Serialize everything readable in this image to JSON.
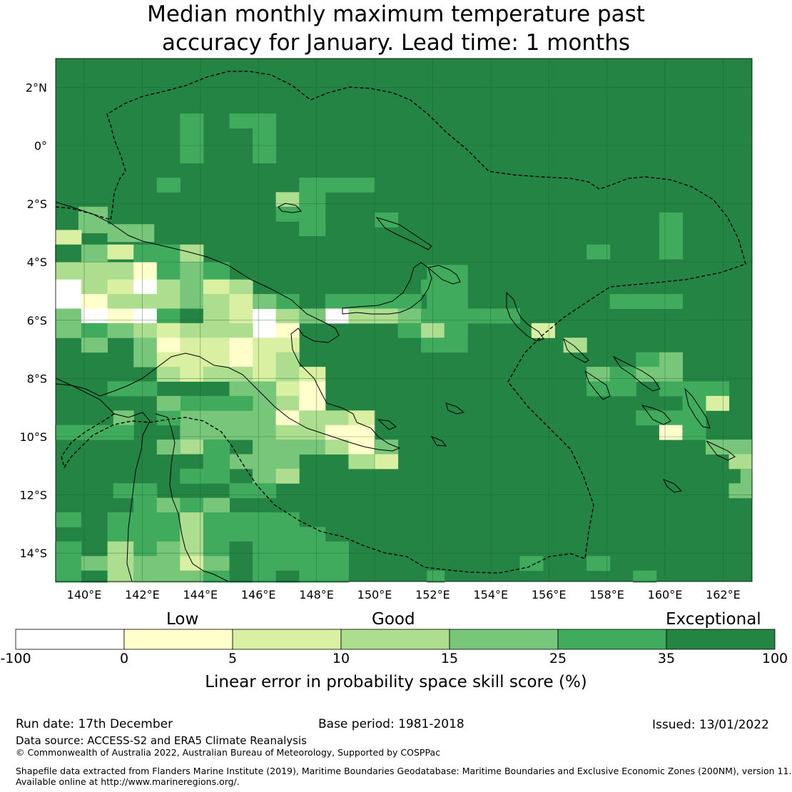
{
  "title": {
    "line1": "Median monthly maximum temperature past",
    "line2": "accuracy for January. Lead time: 1 months"
  },
  "map": {
    "lat_labels": [
      "2°N",
      "0°",
      "2°S",
      "4°S",
      "6°S",
      "8°S",
      "10°S",
      "12°S",
      "14°S"
    ],
    "lon_labels": [
      "140°E",
      "142°E",
      "144°E",
      "146°E",
      "148°E",
      "150°E",
      "152°E",
      "154°E",
      "156°E",
      "158°E",
      "160°E",
      "162°E"
    ],
    "default_color": "#238443",
    "outline_color": "#000000"
  },
  "colorbar": {
    "categories": [
      "Low",
      "Good",
      "Exceptional"
    ],
    "ticks": [
      "-100",
      "0",
      "5",
      "10",
      "15",
      "25",
      "35",
      "100"
    ],
    "colors": [
      "#ffffff",
      "#ffffcc",
      "#d9f0a3",
      "#addd8e",
      "#78c679",
      "#41ab5d",
      "#238443"
    ],
    "label": "Linear error in probability space skill score (%)"
  },
  "footer": {
    "run_date": "Run date: 17th December",
    "base_period": "Base period: 1981-2018",
    "issued": "Issued: 13/01/2022",
    "data_source": "Data source: ACCESS-S2 and ERA5 Climate Reanalysis",
    "copyright": "© Commonwealth of Australia 2022, Australian Bureau of Meteorology, Supported by COSPPac",
    "shapefile_line1": "Shapefile data extracted from Flanders Marine Institute (2019), Maritime Boundaries Geodatabase: Maritime Boundaries and Exclusive Economic Zones (200NM), version 11.",
    "shapefile_line2": "Available online at http://www.marineregions.org/."
  }
}
